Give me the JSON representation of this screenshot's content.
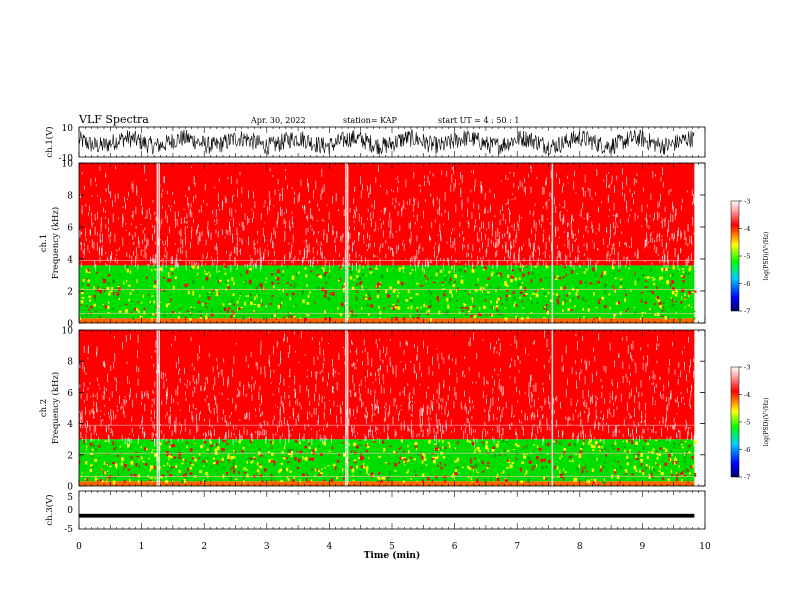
{
  "header": {
    "title": "VLF Spectra",
    "date": "Apr. 30, 2022",
    "station": "station= KAP",
    "start": "start  UT  =   4 : 50 : 1"
  },
  "chart_data": [
    {
      "type": "line",
      "panel": "ch1-waveform",
      "ylabel": "ch.1(V)",
      "ylim": [
        -10,
        10
      ],
      "yticks": [
        "10",
        "-10"
      ],
      "xlim": [
        0,
        10
      ],
      "color": "#000000",
      "description_values": "dense waveform oscillating roughly between -10 and 10 V"
    },
    {
      "type": "heatmap",
      "panel": "ch1-spectrogram",
      "ylabel": "ch.1\nFrequency (kHz)",
      "ylim": [
        0,
        10
      ],
      "yticks": [
        "0",
        "2",
        "4",
        "6",
        "8",
        "10"
      ],
      "xlim": [
        0,
        10
      ],
      "bands": [
        {
          "from": 0,
          "to": 0.3,
          "level": -4.5
        },
        {
          "from": 0.3,
          "to": 3.6,
          "level": -5.2
        },
        {
          "from": 3.6,
          "to": 10,
          "level": -3.6
        }
      ],
      "colorbar": {
        "ticks": [
          "-3",
          "-4",
          "-5",
          "-6",
          "-7"
        ],
        "label": "log(PSD)(V²/Hz)",
        "range": [
          -7,
          -3
        ]
      }
    },
    {
      "type": "heatmap",
      "panel": "ch2-spectrogram",
      "ylabel": "ch.2\nFrequency (kHz)",
      "ylim": [
        0,
        10
      ],
      "yticks": [
        "0",
        "2",
        "4",
        "6",
        "8",
        "10"
      ],
      "xlim": [
        0,
        10
      ],
      "bands": [
        {
          "from": 0,
          "to": 0.3,
          "level": -4.5
        },
        {
          "from": 0.3,
          "to": 3.0,
          "level": -5.2
        },
        {
          "from": 3.0,
          "to": 10,
          "level": -3.6
        }
      ],
      "colorbar": {
        "ticks": [
          "-3",
          "-4",
          "-5",
          "-6",
          "-7"
        ],
        "label": "log(PSD)(V²/Hz)",
        "range": [
          -7,
          -3
        ]
      }
    },
    {
      "type": "line",
      "panel": "ch3-waveform",
      "ylabel": "ch.3(V)",
      "ylim": [
        -5,
        5
      ],
      "yticks": [
        "5",
        "0",
        "-5"
      ],
      "xlim": [
        0,
        10
      ],
      "values_range": [
        -2,
        -1
      ],
      "color": "#000000"
    }
  ],
  "xaxis": {
    "label": "Time (min)",
    "ticks": [
      "0",
      "1",
      "2",
      "3",
      "4",
      "5",
      "6",
      "7",
      "8",
      "9",
      "10"
    ],
    "range": [
      0,
      10
    ],
    "data_end": 9.83
  },
  "colors": {
    "high": "#ff0000",
    "mid": "#ffff00",
    "low": "#00dd00",
    "lowest": "#0000ff",
    "background": "#ffffff"
  }
}
